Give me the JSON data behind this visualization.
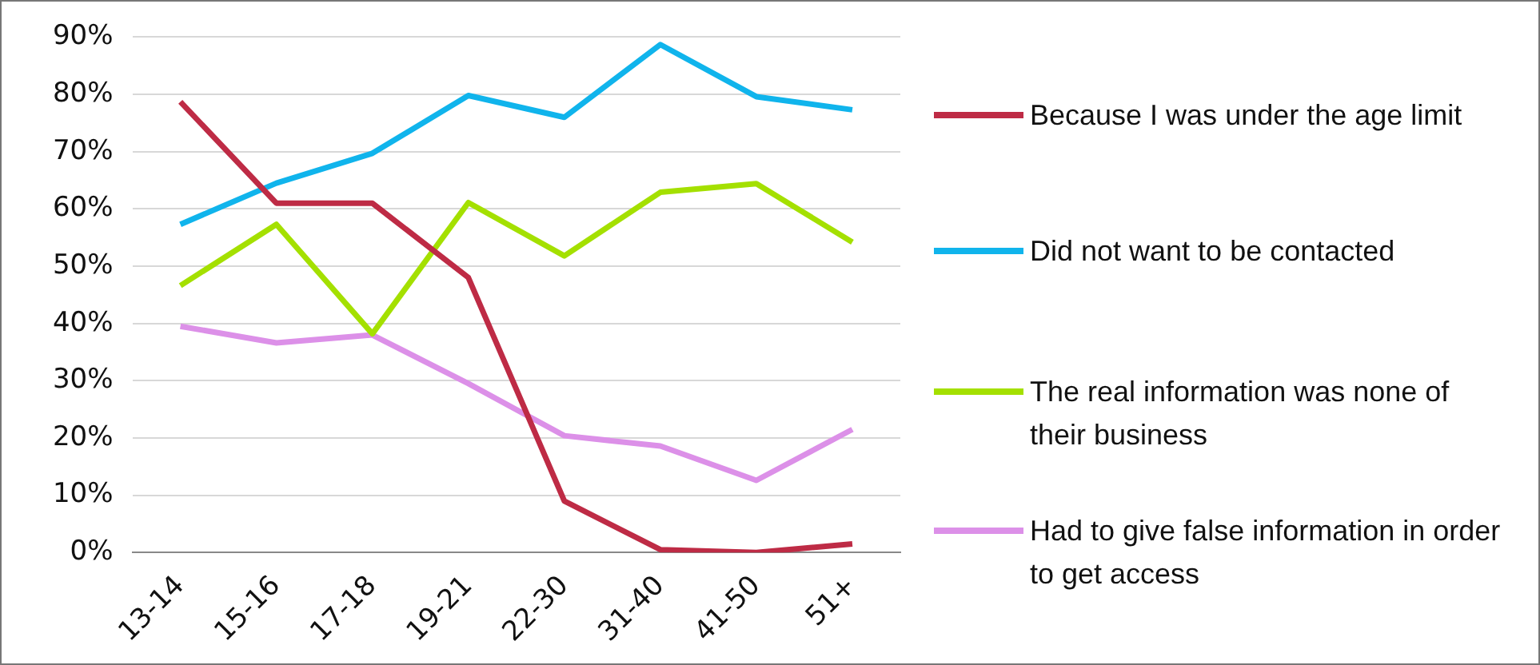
{
  "chart_data": {
    "type": "line",
    "categories": [
      "13-14",
      "15-16",
      "17-18",
      "19-21",
      "22-30",
      "31-40",
      "41-50",
      "51+"
    ],
    "series": [
      {
        "name": "Because I was under the age limit",
        "color": "#be2b45",
        "values": [
          78.7,
          61,
          61,
          48,
          9,
          0.5,
          0,
          1.5
        ]
      },
      {
        "name": "Did not want to be contacted",
        "color": "#10b4ec",
        "values": [
          57.3,
          64.5,
          69.7,
          79.8,
          76,
          88.7,
          79.6,
          77.3
        ]
      },
      {
        "name": "The real information was none of their business",
        "color": "#a4e000",
        "values": [
          46.6,
          57.3,
          38.2,
          61.1,
          51.8,
          62.9,
          64.4,
          54.2
        ]
      },
      {
        "name": "Had to give false information in order to get access",
        "color": "#dc90e8",
        "values": [
          39.5,
          36.6,
          38,
          29.5,
          20.4,
          18.6,
          12.6,
          21.5
        ]
      }
    ],
    "ylim": [
      0,
      90
    ],
    "yticks": [
      {
        "value": 0,
        "label": "0%"
      },
      {
        "value": 10,
        "label": "10%"
      },
      {
        "value": 20,
        "label": "20%"
      },
      {
        "value": 30,
        "label": "30%"
      },
      {
        "value": 40,
        "label": "40%"
      },
      {
        "value": 50,
        "label": "50%"
      },
      {
        "value": 60,
        "label": "60%"
      },
      {
        "value": 70,
        "label": "70%"
      },
      {
        "value": 80,
        "label": "80%"
      },
      {
        "value": 90,
        "label": "90%"
      }
    ],
    "grid": "y",
    "legend": "right",
    "marker": "none",
    "line_style": "solid"
  }
}
